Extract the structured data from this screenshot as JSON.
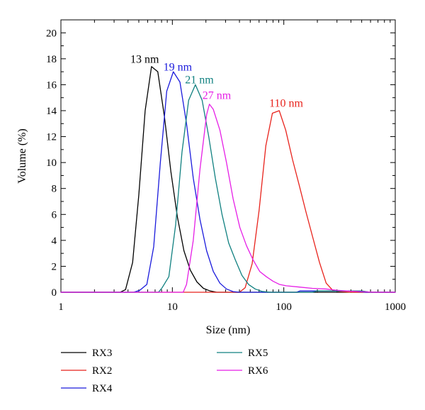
{
  "chart_data": {
    "type": "line",
    "xlabel": "Size (nm)",
    "ylabel": "Volume (%)",
    "xscale": "log",
    "xlim": [
      1,
      1000
    ],
    "ylim": [
      0,
      21
    ],
    "x_ticks": [
      1,
      10,
      100,
      1000
    ],
    "x_tick_labels": [
      "1",
      "10",
      "100",
      "1000"
    ],
    "y_ticks": [
      0,
      2,
      4,
      6,
      8,
      10,
      12,
      14,
      16,
      18,
      20
    ],
    "y_tick_labels": [
      "0",
      "2",
      "4",
      "6",
      "8",
      "10",
      "12",
      "14",
      "16",
      "18",
      "20"
    ],
    "grid": false,
    "legend_position": "bottom",
    "series": [
      {
        "name": "RX3",
        "color": "#000000",
        "points": [
          [
            1,
            0
          ],
          [
            3.4,
            0
          ],
          [
            3.8,
            0.2
          ],
          [
            4.4,
            2.3
          ],
          [
            5.0,
            7.5
          ],
          [
            5.7,
            14
          ],
          [
            6.5,
            17.4
          ],
          [
            7.4,
            17.0
          ],
          [
            8.5,
            13.5
          ],
          [
            9.7,
            9.3
          ],
          [
            11.1,
            5.8
          ],
          [
            12.7,
            3.2
          ],
          [
            14.5,
            1.7
          ],
          [
            16.6,
            0.8
          ],
          [
            19.0,
            0.3
          ],
          [
            21.8,
            0.1
          ],
          [
            25.0,
            0
          ],
          [
            1000,
            0
          ]
        ]
      },
      {
        "name": "RX2",
        "color": "#e8231c",
        "points": [
          [
            1,
            0
          ],
          [
            40,
            0
          ],
          [
            45,
            0.35
          ],
          [
            52,
            2.2
          ],
          [
            60,
            6.3
          ],
          [
            69,
            11.3
          ],
          [
            79,
            13.8
          ],
          [
            91,
            14.0
          ],
          [
            104,
            12.5
          ],
          [
            120,
            10.2
          ],
          [
            138,
            8.2
          ],
          [
            158,
            6.2
          ],
          [
            181,
            4.3
          ],
          [
            209,
            2.3
          ],
          [
            240,
            0.7
          ],
          [
            275,
            0.15
          ],
          [
            316,
            0.05
          ],
          [
            400,
            0
          ],
          [
            1000,
            0
          ]
        ]
      },
      {
        "name": "RX4",
        "color": "#1a1adc",
        "points": [
          [
            1,
            0
          ],
          [
            4.5,
            0
          ],
          [
            5.1,
            0.15
          ],
          [
            5.9,
            0.6
          ],
          [
            6.8,
            3.5
          ],
          [
            7.8,
            10.0
          ],
          [
            8.9,
            15.5
          ],
          [
            10.2,
            17.0
          ],
          [
            11.7,
            16.2
          ],
          [
            13.4,
            13.0
          ],
          [
            15.4,
            8.8
          ],
          [
            17.7,
            5.6
          ],
          [
            20.3,
            3.2
          ],
          [
            23.3,
            1.6
          ],
          [
            26.7,
            0.7
          ],
          [
            30.6,
            0.25
          ],
          [
            35.1,
            0.05
          ],
          [
            40,
            0
          ],
          [
            130,
            0
          ],
          [
            140,
            0.1
          ],
          [
            400,
            0.1
          ],
          [
            550,
            0
          ],
          [
            1000,
            0
          ]
        ]
      },
      {
        "name": "RX5",
        "color": "#108080",
        "points": [
          [
            1,
            0
          ],
          [
            7.5,
            0
          ],
          [
            8.1,
            0.35
          ],
          [
            9.3,
            1.2
          ],
          [
            10.7,
            5.2
          ],
          [
            12.2,
            10.8
          ],
          [
            14.0,
            14.8
          ],
          [
            16.1,
            16.0
          ],
          [
            18.5,
            14.8
          ],
          [
            21.2,
            12.0
          ],
          [
            24.3,
            8.8
          ],
          [
            27.9,
            6.0
          ],
          [
            32.0,
            3.8
          ],
          [
            36.7,
            2.5
          ],
          [
            42.1,
            1.3
          ],
          [
            48.3,
            0.6
          ],
          [
            55.4,
            0.25
          ],
          [
            63.5,
            0.07
          ],
          [
            75,
            0
          ],
          [
            180,
            0
          ],
          [
            200,
            0.1
          ],
          [
            500,
            0.1
          ],
          [
            600,
            0
          ],
          [
            1000,
            0
          ]
        ]
      },
      {
        "name": "RX6",
        "color": "#e61ee6",
        "points": [
          [
            1,
            0
          ],
          [
            12.5,
            0
          ],
          [
            13.4,
            0.6
          ],
          [
            15.4,
            4.0
          ],
          [
            17.7,
            9.5
          ],
          [
            20.3,
            13.7
          ],
          [
            21.5,
            14.5
          ],
          [
            23.3,
            14.1
          ],
          [
            26.7,
            12.5
          ],
          [
            30.6,
            10.0
          ],
          [
            35.1,
            7.2
          ],
          [
            40.3,
            5.0
          ],
          [
            46.2,
            3.6
          ],
          [
            53.0,
            2.5
          ],
          [
            60.8,
            1.6
          ],
          [
            69.7,
            1.2
          ],
          [
            80,
            0.85
          ],
          [
            91.7,
            0.6
          ],
          [
            105,
            0.5
          ],
          [
            138,
            0.4
          ],
          [
            180,
            0.3
          ],
          [
            240,
            0.25
          ],
          [
            300,
            0.15
          ],
          [
            400,
            0.08
          ],
          [
            500,
            0.05
          ],
          [
            650,
            0
          ],
          [
            1000,
            0
          ]
        ]
      }
    ],
    "annotations": [
      {
        "text": "13 nm",
        "color": "#000000",
        "x": 4.2,
        "y": 17.7
      },
      {
        "text": "19 nm",
        "color": "#1a1adc",
        "x": 8.3,
        "y": 17.1
      },
      {
        "text": "21 nm",
        "color": "#108080",
        "x": 13.0,
        "y": 16.1
      },
      {
        "text": "27 nm",
        "color": "#e61ee6",
        "x": 18.6,
        "y": 14.9
      },
      {
        "text": "110 nm",
        "color": "#e8231c",
        "x": 74,
        "y": 14.3
      }
    ],
    "legend": [
      {
        "name": "RX3",
        "color": "#000000"
      },
      {
        "name": "RX2",
        "color": "#e8231c"
      },
      {
        "name": "RX4",
        "color": "#1a1adc"
      },
      {
        "name": "RX5",
        "color": "#108080"
      },
      {
        "name": "RX6",
        "color": "#e61ee6"
      }
    ]
  }
}
